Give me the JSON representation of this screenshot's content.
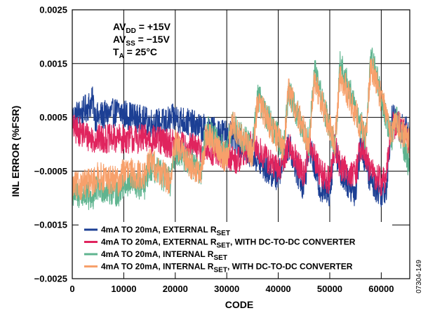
{
  "chart_data": {
    "type": "line",
    "title": "",
    "xlabel": "CODE",
    "ylabel": "INL ERROR (%FSR)",
    "xlim": [
      0,
      65535
    ],
    "ylim": [
      -0.0025,
      0.0025
    ],
    "x_ticks": [
      "0",
      "10000",
      "20000",
      "30000",
      "40000",
      "50000",
      "60000"
    ],
    "y_ticks": [
      "0.0025",
      "0.0015",
      "0.0005",
      "−0.0005",
      "−0.0015",
      "−0.0025"
    ],
    "grid": true,
    "legend_position": "bottom-center",
    "conditions": [
      {
        "main": "AV",
        "sub": "DD",
        "rest": " = +15V"
      },
      {
        "main": "AV",
        "sub": "SS",
        "rest": " = −15V"
      },
      {
        "main": "T",
        "sub": "A",
        "rest": " = 25°C"
      }
    ],
    "figure_id": "07304-149",
    "series": [
      {
        "name": "4mA TO 20mA, EXTERNAL RSET",
        "legend": {
          "pre": "4mA TO 20mA, EXTERNAL R",
          "sub": "SET",
          "post": ""
        },
        "color": "#1c3f94",
        "x": [
          0,
          2000,
          4000,
          4500,
          9000,
          12000,
          15000,
          18000,
          20000,
          25000,
          30000,
          33000,
          35000,
          38000,
          40000,
          42000,
          44000,
          45000,
          46000,
          48000,
          50000,
          51000,
          52000,
          54000,
          55000,
          56000,
          58000,
          60000,
          61000,
          62000,
          64000,
          65535
        ],
        "values": [
          0.0005,
          0.0006,
          0.0008,
          0.0005,
          0.0006,
          0.0005,
          0.0004,
          0.0004,
          0.0005,
          0.0003,
          0.0002,
          0.0,
          -0.0002,
          -0.0005,
          -0.0006,
          0.0,
          -0.0006,
          -0.0008,
          0.0,
          -0.0008,
          -0.0009,
          0.0,
          -0.0005,
          -0.0008,
          -0.0009,
          0.0,
          -0.0007,
          -0.0009,
          -0.0008,
          0.0005,
          0.0003,
          0.0002
        ]
      },
      {
        "name": "4mA TO 20mA, EXTERNAL RSET, WITH DC-TO-DC CONVERTER",
        "legend": {
          "pre": "4mA TO 20mA, EXTERNAL R",
          "sub": "SET",
          "post": ", WITH DC-TO-DC CONVERTER"
        },
        "color": "#e0245e",
        "x": [
          0,
          2000,
          4000,
          10000,
          15000,
          20000,
          25000,
          30000,
          32000,
          35000,
          38000,
          40000,
          42000,
          45000,
          46000,
          48000,
          50000,
          51000,
          52000,
          55000,
          56000,
          58000,
          60000,
          61000,
          62000,
          64000,
          65535
        ],
        "values": [
          0.0003,
          0.0002,
          0.0001,
          0.0001,
          0.0001,
          0.0,
          -0.0001,
          -0.0002,
          -0.0003,
          0.0,
          -0.0003,
          -0.0005,
          0.0,
          -0.0006,
          0.0,
          -0.0005,
          -0.0007,
          0.0,
          -0.0004,
          -0.0006,
          0.0,
          -0.0005,
          -0.0007,
          -0.0006,
          0.0004,
          0.0003,
          0.0
        ]
      },
      {
        "name": "4mA TO 20mA, INTERNAL RSET",
        "legend": {
          "pre": "4mA TO 20mA, INTERNAL R",
          "sub": "SET",
          "post": ""
        },
        "color": "#5fb48f",
        "x": [
          0,
          4000,
          5000,
          9000,
          10000,
          14000,
          15000,
          19000,
          20000,
          25000,
          26000,
          30000,
          31000,
          35000,
          36000,
          41000,
          42000,
          46000,
          47000,
          51000,
          52000,
          57000,
          58000,
          62000,
          63000,
          65535
        ],
        "values": [
          -0.0009,
          -0.001,
          -0.0008,
          -0.0009,
          -0.0007,
          -0.0008,
          -0.0004,
          -0.0007,
          -0.0001,
          -0.0005,
          0.0003,
          -0.0002,
          0.0004,
          -0.0001,
          0.0009,
          -0.0001,
          0.001,
          0.0,
          0.0014,
          -0.0001,
          0.0015,
          0.0001,
          0.0017,
          0.0001,
          0.0005,
          -0.0005
        ]
      },
      {
        "name": "4mA TO 20mA, INTERNAL RSET, WITH DC-TO-DC CONVERTER",
        "legend": {
          "pre": "4mA TO 20mA, INTERNAL R",
          "sub": "SET",
          "post": ", WITH DC-TO-DC CONVERTER"
        },
        "color": "#f7a06b",
        "x": [
          0,
          4000,
          5000,
          9000,
          10000,
          14000,
          15000,
          19000,
          20000,
          25000,
          26000,
          30000,
          31000,
          35000,
          36000,
          41000,
          42000,
          46000,
          47000,
          51000,
          52000,
          57000,
          58000,
          62000,
          63000,
          65535
        ],
        "values": [
          -0.0008,
          -0.0007,
          -0.0006,
          -0.0007,
          -0.0005,
          -0.0006,
          -0.0003,
          -0.0007,
          0.0,
          -0.0006,
          0.0002,
          -0.0003,
          0.0004,
          -0.0002,
          0.0008,
          -0.0001,
          0.001,
          0.0,
          0.0012,
          0.0,
          0.0013,
          0.0001,
          0.0015,
          0.0002,
          0.0004,
          0.0
        ]
      }
    ]
  }
}
